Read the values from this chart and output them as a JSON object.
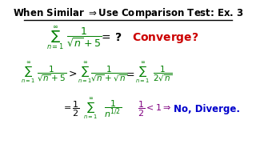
{
  "bg_color": "#ffffff",
  "title_color": "#000000",
  "green_color": "#008000",
  "black_color": "#000000",
  "red_color": "#cc0000",
  "blue_color": "#0000cc",
  "purple_color": "#800080"
}
